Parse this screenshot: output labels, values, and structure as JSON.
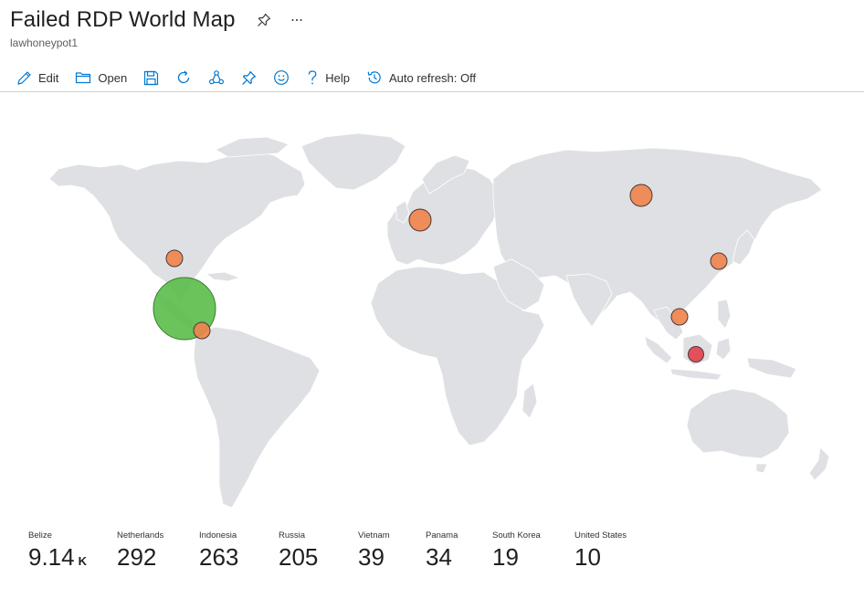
{
  "page": {
    "title": "Failed RDP World Map",
    "subtitle": "lawhoneypot1"
  },
  "toolbar": {
    "edit": "Edit",
    "open": "Open",
    "help": "Help",
    "auto_refresh": "Auto refresh: Off"
  },
  "colors": {
    "land": "#dfe0e3",
    "bubble_green": "#5bbd4a",
    "bubble_orange": "#ef834a",
    "bubble_red": "#e2404d",
    "accent": "#0078d4"
  },
  "stats": [
    {
      "name": "Belize",
      "value": "9.14",
      "unit": "K"
    },
    {
      "name": "Netherlands",
      "value": "292",
      "unit": ""
    },
    {
      "name": "Indonesia",
      "value": "263",
      "unit": ""
    },
    {
      "name": "Russia",
      "value": "205",
      "unit": ""
    },
    {
      "name": "Vietnam",
      "value": "39",
      "unit": ""
    },
    {
      "name": "Panama",
      "value": "34",
      "unit": ""
    },
    {
      "name": "South Korea",
      "value": "19",
      "unit": ""
    },
    {
      "name": "United States",
      "value": "10",
      "unit": ""
    }
  ],
  "map_points": [
    {
      "country": "Belize",
      "count": 9140,
      "color": "green"
    },
    {
      "country": "Netherlands",
      "count": 292,
      "color": "orange"
    },
    {
      "country": "Indonesia",
      "count": 263,
      "color": "red"
    },
    {
      "country": "Russia",
      "count": 205,
      "color": "orange"
    },
    {
      "country": "Vietnam",
      "count": 39,
      "color": "orange"
    },
    {
      "country": "Panama",
      "count": 34,
      "color": "orange"
    },
    {
      "country": "South Korea",
      "count": 19,
      "color": "orange"
    },
    {
      "country": "United States",
      "count": 10,
      "color": "orange"
    }
  ]
}
